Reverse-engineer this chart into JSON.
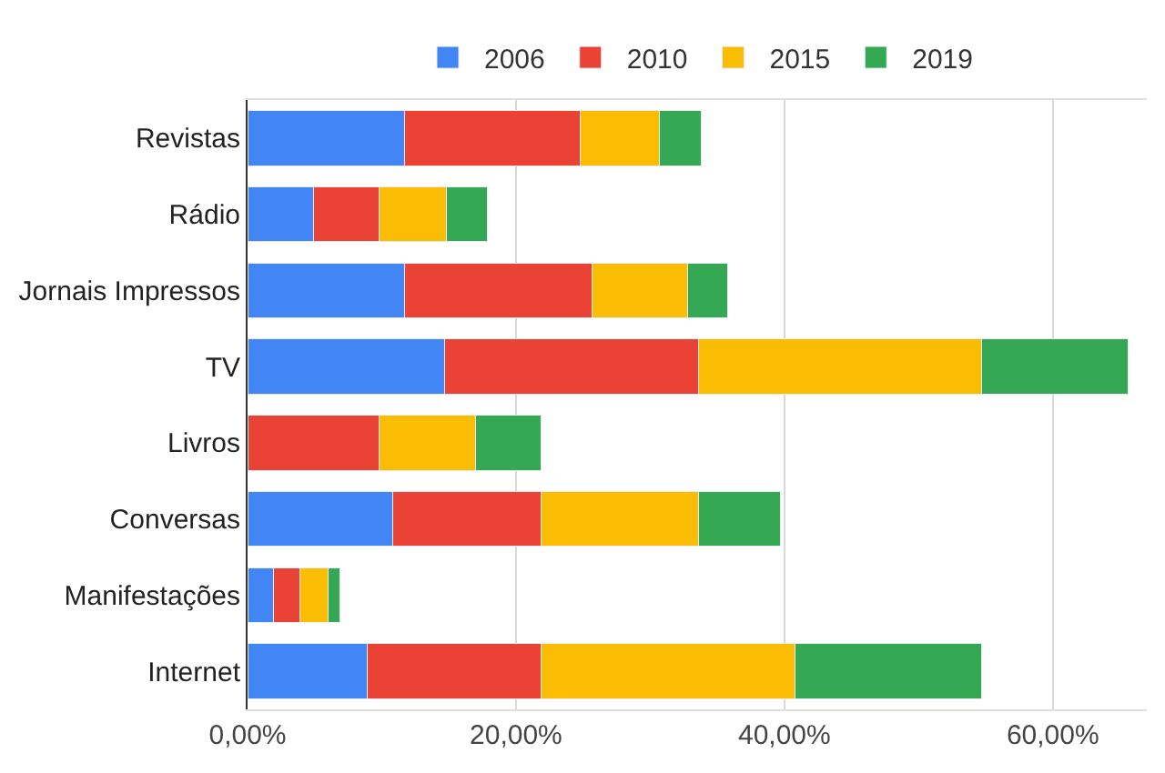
{
  "chart_data": {
    "type": "bar",
    "orientation": "horizontal",
    "stacked": true,
    "categories": [
      "Revistas",
      "Rádio",
      "Jornais Impressos",
      "TV",
      "Livros",
      "Conversas",
      "Manifestações",
      "Internet"
    ],
    "series": [
      {
        "name": "2006",
        "color": "#4285f4",
        "values": [
          11.7,
          4.9,
          11.7,
          14.7,
          0,
          10.8,
          1.9,
          8.9
        ]
      },
      {
        "name": "2010",
        "color": "#ea4335",
        "values": [
          13.1,
          4.9,
          14.0,
          18.9,
          9.8,
          11.1,
          2.0,
          13.0
        ]
      },
      {
        "name": "2015",
        "color": "#fbbc04",
        "values": [
          5.9,
          5.0,
          7.1,
          21.1,
          7.2,
          11.7,
          2.1,
          18.9
        ]
      },
      {
        "name": "2019",
        "color": "#34a853",
        "values": [
          3.1,
          3.1,
          3.0,
          10.9,
          4.9,
          6.1,
          0.9,
          13.9
        ]
      }
    ],
    "xlim": [
      0,
      67
    ],
    "xticks": [
      {
        "value": 0,
        "label": "0,00%"
      },
      {
        "value": 20,
        "label": "20,00%"
      },
      {
        "value": 40,
        "label": "40,00%"
      },
      {
        "value": 60,
        "label": "60,00%"
      }
    ],
    "grid": "x",
    "legend": "top"
  }
}
